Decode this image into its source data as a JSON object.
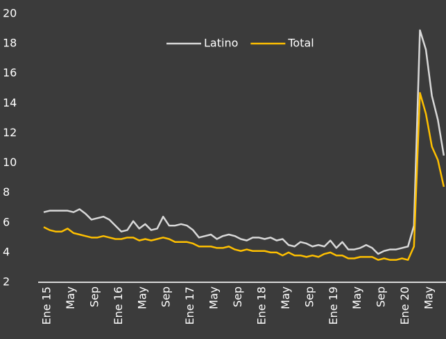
{
  "chart_data": {
    "type": "line",
    "categories": [
      "Ene 15",
      null,
      null,
      null,
      "May",
      null,
      null,
      null,
      "Sep",
      null,
      null,
      null,
      "Ene 16",
      null,
      null,
      null,
      "May",
      null,
      null,
      null,
      "Sep",
      null,
      null,
      null,
      "Ene 17",
      null,
      null,
      null,
      "May",
      null,
      null,
      null,
      "Sep",
      null,
      null,
      null,
      "Ene 18",
      null,
      null,
      null,
      "May",
      null,
      null,
      null,
      "Sep",
      null,
      null,
      null,
      "Ene 19",
      null,
      null,
      null,
      "May",
      null,
      null,
      null,
      "Sep",
      null,
      null,
      null,
      "Ene 20",
      null,
      null,
      null,
      "May",
      null,
      null,
      null
    ],
    "series": [
      {
        "name": "Latino",
        "color": "#d9d9d9",
        "values": [
          6.7,
          6.8,
          6.8,
          6.8,
          6.8,
          6.7,
          6.9,
          6.6,
          6.2,
          6.3,
          6.4,
          6.2,
          5.8,
          5.4,
          5.5,
          6.1,
          5.6,
          5.9,
          5.5,
          5.6,
          6.4,
          5.8,
          5.8,
          5.9,
          5.8,
          5.5,
          5.0,
          5.1,
          5.2,
          4.9,
          5.1,
          5.2,
          5.1,
          4.9,
          4.8,
          5.0,
          5.0,
          4.9,
          5.0,
          4.8,
          4.9,
          4.5,
          4.4,
          4.7,
          4.6,
          4.4,
          4.5,
          4.4,
          4.8,
          4.3,
          4.7,
          4.2,
          4.2,
          4.3,
          4.5,
          4.3,
          3.9,
          4.1,
          4.2,
          4.2,
          4.3,
          4.4,
          5.8,
          18.9,
          17.6,
          14.5,
          12.9,
          10.5
        ]
      },
      {
        "name": "Total",
        "color": "#ffc000",
        "values": [
          5.7,
          5.5,
          5.4,
          5.4,
          5.6,
          5.3,
          5.2,
          5.1,
          5.0,
          5.0,
          5.1,
          5.0,
          4.9,
          4.9,
          5.0,
          5.0,
          4.8,
          4.9,
          4.8,
          4.9,
          5.0,
          4.9,
          4.7,
          4.7,
          4.7,
          4.6,
          4.4,
          4.4,
          4.4,
          4.3,
          4.3,
          4.4,
          4.2,
          4.1,
          4.2,
          4.1,
          4.1,
          4.1,
          4.0,
          4.0,
          3.8,
          4.0,
          3.8,
          3.8,
          3.7,
          3.8,
          3.7,
          3.9,
          4.0,
          3.8,
          3.8,
          3.6,
          3.6,
          3.7,
          3.7,
          3.7,
          3.5,
          3.6,
          3.5,
          3.5,
          3.6,
          3.5,
          4.4,
          14.7,
          13.3,
          11.1,
          10.2,
          8.4
        ]
      }
    ],
    "ylim": [
      2,
      20
    ],
    "yticks": [
      2,
      4,
      6,
      8,
      10,
      12,
      14,
      16,
      18,
      20
    ],
    "grid": false,
    "legend": "top"
  }
}
